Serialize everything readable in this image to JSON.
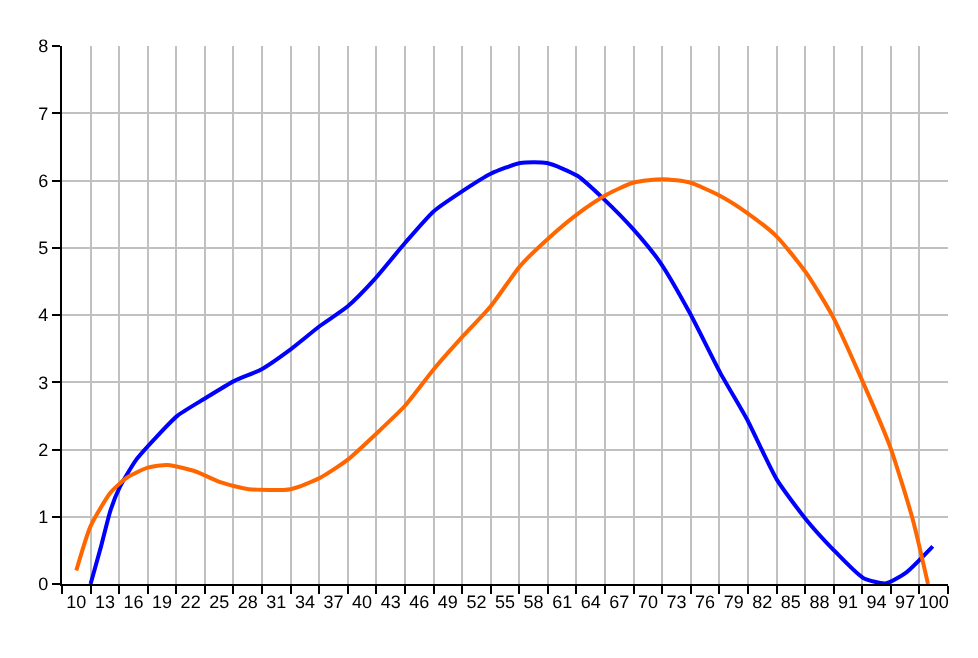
{
  "chart_data": {
    "type": "line",
    "xlim": [
      8.5,
      101.5
    ],
    "ylim": [
      0,
      8
    ],
    "yticks": [
      0,
      1,
      2,
      3,
      4,
      5,
      6,
      7,
      8
    ],
    "xticks": [
      {
        "value": 8.5,
        "label": null
      },
      10,
      {
        "value": 11.5,
        "label": null
      },
      13,
      {
        "value": 14.5,
        "label": null
      },
      16,
      {
        "value": 17.5,
        "label": null
      },
      19,
      {
        "value": 20.5,
        "label": null
      },
      22,
      {
        "value": 23.5,
        "label": null
      },
      25,
      {
        "value": 26.5,
        "label": null
      },
      28,
      {
        "value": 29.5,
        "label": null
      },
      31,
      {
        "value": 32.5,
        "label": null
      },
      34,
      {
        "value": 35.5,
        "label": null
      },
      37,
      {
        "value": 38.5,
        "label": null
      },
      40,
      {
        "value": 41.5,
        "label": null
      },
      43,
      {
        "value": 44.5,
        "label": null
      },
      46,
      {
        "value": 47.5,
        "label": null
      },
      49,
      {
        "value": 50.5,
        "label": null
      },
      52,
      {
        "value": 53.5,
        "label": null
      },
      55,
      {
        "value": 56.5,
        "label": null
      },
      58,
      {
        "value": 59.5,
        "label": null
      },
      61,
      {
        "value": 62.5,
        "label": null
      },
      64,
      {
        "value": 65.5,
        "label": null
      },
      67,
      {
        "value": 68.5,
        "label": null
      },
      70,
      {
        "value": 71.5,
        "label": null
      },
      73,
      {
        "value": 74.5,
        "label": null
      },
      76,
      {
        "value": 77.5,
        "label": null
      },
      79,
      {
        "value": 80.5,
        "label": null
      },
      82,
      {
        "value": 83.5,
        "label": null
      },
      85,
      {
        "value": 86.5,
        "label": null
      },
      88,
      {
        "value": 89.5,
        "label": null
      },
      91,
      {
        "value": 92.5,
        "label": null
      },
      94,
      {
        "value": 95.5,
        "label": null
      },
      97,
      {
        "value": 98.5,
        "label": null
      },
      100,
      {
        "value": 101.5,
        "label": null
      }
    ],
    "grid": true,
    "marker": "none",
    "line_style": "solid",
    "series": [
      {
        "color": "#0000ff",
        "x": [
          11.5,
          12.6,
          13.6,
          14.6,
          16.3,
          18.5,
          20.6,
          23.4,
          26.6,
          29.4,
          32.5,
          35.6,
          38.5,
          41.3,
          44.5,
          47.5,
          50.3,
          53.5,
          56.6,
          59.4,
          62.6,
          65.4,
          68.5,
          71.3,
          74.4,
          77.6,
          80.4,
          83.5,
          86.6,
          89.4,
          92.6,
          95.0,
          97.1,
          99.9
        ],
        "values": [
          0,
          0.56,
          1.1,
          1.45,
          1.85,
          2.2,
          2.5,
          2.75,
          3.02,
          3.19,
          3.49,
          3.84,
          4.13,
          4.53,
          5.07,
          5.54,
          5.82,
          6.1,
          6.26,
          6.26,
          6.07,
          5.72,
          5.27,
          4.78,
          4.03,
          3.14,
          2.45,
          1.56,
          0.96,
          0.52,
          0.09,
          0.01,
          0.17,
          0.56
        ]
      },
      {
        "color": "#ff6600",
        "x": [
          10,
          11.5,
          13.6,
          15.3,
          17.5,
          19.6,
          22.4,
          25.2,
          28.1,
          32.5,
          35.6,
          38.5,
          41.6,
          44.5,
          47.5,
          50.3,
          53.5,
          56.6,
          59.4,
          62.6,
          65.7,
          68.5,
          71.6,
          74.4,
          77.6,
          80.4,
          83.5,
          86.6,
          89.4,
          92.6,
          95.4,
          97.8,
          99.4
        ],
        "values": [
          0.2,
          0.86,
          1.36,
          1.58,
          1.73,
          1.77,
          1.68,
          1.51,
          1.41,
          1.41,
          1.58,
          1.85,
          2.25,
          2.65,
          3.19,
          3.64,
          4.13,
          4.73,
          5.12,
          5.5,
          5.79,
          5.97,
          6.02,
          5.97,
          5.77,
          5.52,
          5.17,
          4.63,
          3.98,
          2.99,
          2.05,
          0.96,
          0
        ]
      }
    ]
  }
}
